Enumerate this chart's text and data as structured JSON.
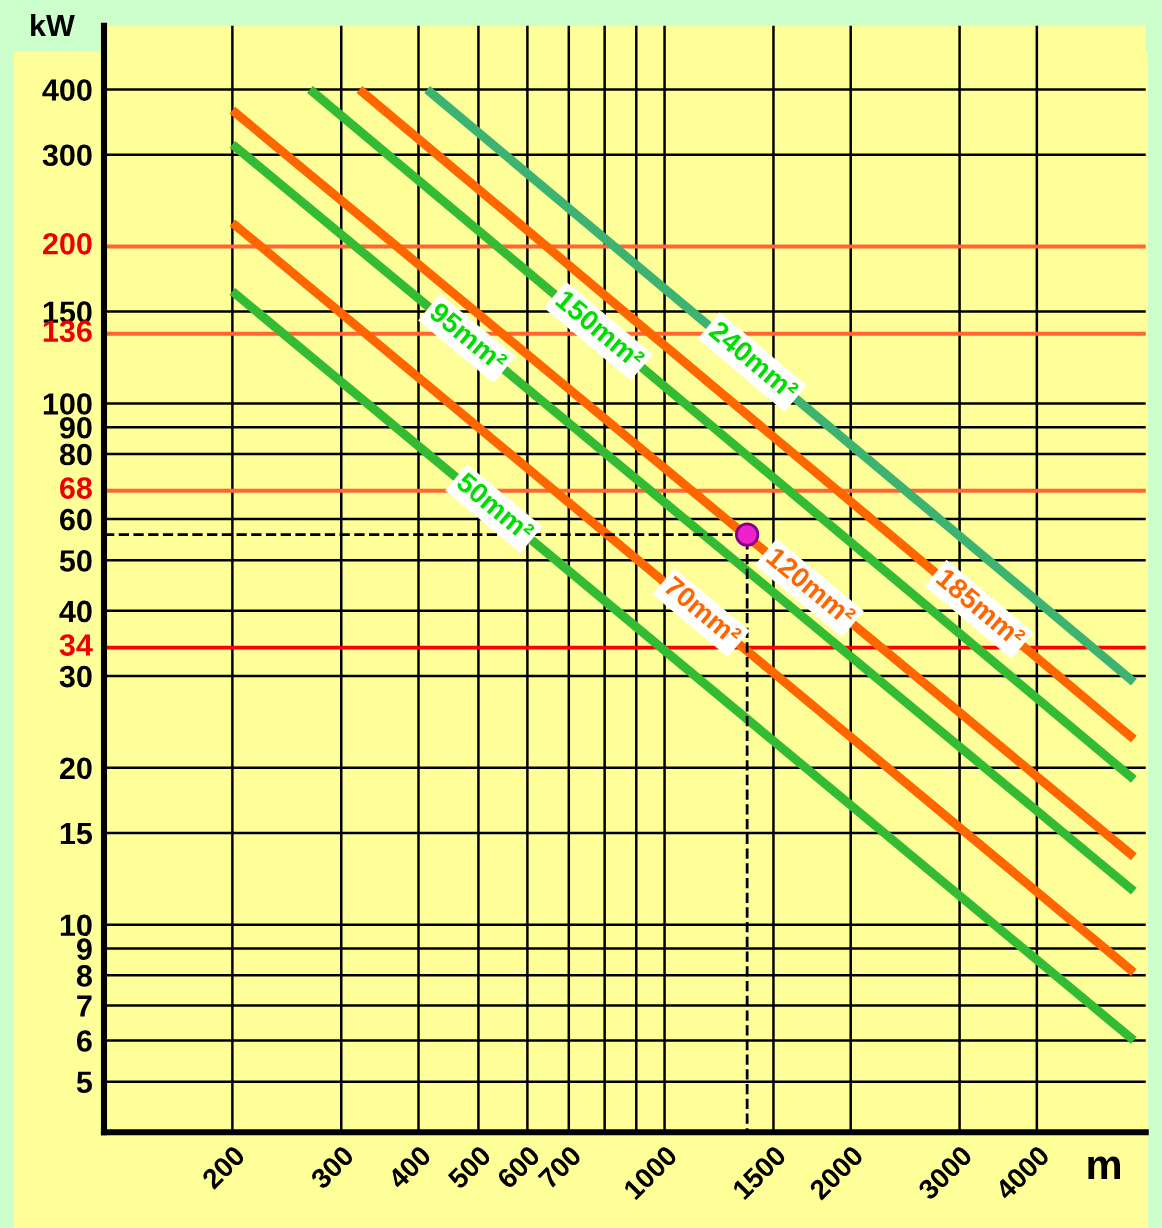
{
  "chart_data": {
    "type": "line",
    "ylabel": "kW",
    "xlabel": "m",
    "log": "xy",
    "xlim": [
      124,
      6000
    ],
    "ylim": [
      4,
      530
    ],
    "xticks": [
      200,
      300,
      400,
      500,
      600,
      700,
      {
        "value": 800,
        "label": null
      },
      {
        "value": 900,
        "label": null
      },
      1000,
      1500,
      2000,
      3000,
      4000
    ],
    "yticks": [
      5,
      6,
      7,
      8,
      9,
      10,
      15,
      20,
      30,
      40,
      50,
      60,
      80,
      90,
      100,
      150,
      300,
      400
    ],
    "grid": true,
    "line_style": "solid",
    "marker": "none",
    "ref_lines": [
      {
        "axis": "y",
        "value": 200,
        "label": "200",
        "color": "#ff6633"
      },
      {
        "axis": "y",
        "value": 136,
        "label": "136",
        "color": "#ff6633"
      },
      {
        "axis": "y",
        "value": 68,
        "label": "68",
        "color": "#ff6633"
      },
      {
        "axis": "y",
        "value": 34,
        "label": "34",
        "color": "#ff0000"
      }
    ],
    "series": [
      {
        "name": "50mm²",
        "color": "#33bb33",
        "x": [
          200,
          5740
        ],
        "values": [
          164,
          6.0
        ]
      },
      {
        "name": "70mm²",
        "color": "#ff6600",
        "x": [
          200,
          5740
        ],
        "values": [
          222,
          8.1
        ]
      },
      {
        "name": "95mm²",
        "color": "#33bb33",
        "x": [
          200,
          5740
        ],
        "values": [
          314,
          11.6
        ]
      },
      {
        "name": "120mm²",
        "color": "#ff6600",
        "x": [
          200,
          5740
        ],
        "values": [
          365,
          13.5
        ]
      },
      {
        "name": "150mm²",
        "color": "#33bb33",
        "x": [
          267,
          5740
        ],
        "values": [
          400,
          19.0
        ]
      },
      {
        "name": "185mm²",
        "color": "#ff6600",
        "x": [
          321,
          5740
        ],
        "values": [
          400,
          22.7
        ]
      },
      {
        "name": "240mm²",
        "color": "#3cb371",
        "x": [
          413,
          5740
        ],
        "values": [
          400,
          29.2
        ]
      },
      {
        "type": "line",
        "color": "#000000",
        "line_style": "dashed",
        "x": [
          124,
          1360,
          1360
        ],
        "values": [
          56,
          56,
          4
        ]
      },
      {
        "type": "scatter",
        "color": "#ee22cc",
        "marker": "circle",
        "x": [
          1360
        ],
        "values": [
          56
        ]
      }
    ]
  }
}
